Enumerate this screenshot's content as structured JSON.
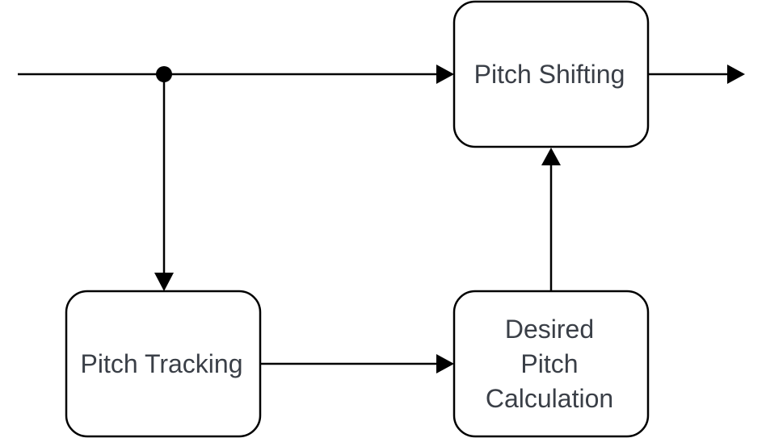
{
  "diagram": {
    "nodes": {
      "pitch_shifting": {
        "label": "Pitch Shifting"
      },
      "pitch_tracking": {
        "label": "Pitch Tracking"
      },
      "desired_pitch": {
        "label_lines": [
          "Desired",
          "Pitch",
          "Calculation"
        ]
      }
    },
    "edges": [
      {
        "from": "input",
        "to": "pitch_shifting"
      },
      {
        "from": "input",
        "to": "pitch_tracking"
      },
      {
        "from": "pitch_tracking",
        "to": "desired_pitch"
      },
      {
        "from": "desired_pitch",
        "to": "pitch_shifting"
      },
      {
        "from": "pitch_shifting",
        "to": "output"
      }
    ]
  }
}
